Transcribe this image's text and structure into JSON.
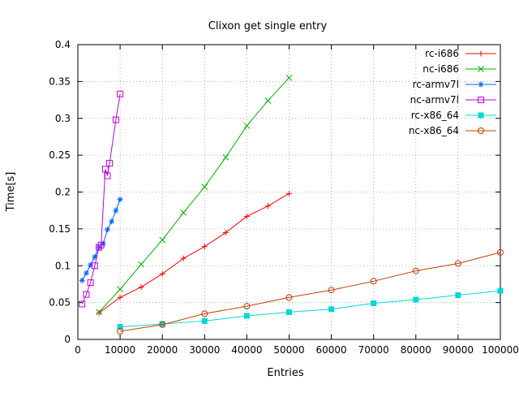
{
  "chart_data": {
    "type": "line",
    "title": "Clixon get single entry",
    "xlabel": "Entries",
    "ylabel": "Time[s]",
    "xlim": [
      0,
      100000
    ],
    "ylim": [
      0,
      0.4
    ],
    "xticks": [
      0,
      10000,
      20000,
      30000,
      40000,
      50000,
      60000,
      70000,
      80000,
      90000,
      100000
    ],
    "xtick_labels": [
      "0",
      "10000",
      "20000",
      "30000",
      "40000",
      "50000",
      "60000",
      "70000",
      "80000",
      "90000",
      "100000"
    ],
    "yticks": [
      0,
      0.05,
      0.1,
      0.15,
      0.2,
      0.25,
      0.3,
      0.35,
      0.4
    ],
    "ytick_labels": [
      "0",
      "0.05",
      "0.1",
      "0.15",
      "0.2",
      "0.25",
      "0.3",
      "0.35",
      "0.4"
    ],
    "grid": true,
    "legend_position": "top-right-inside",
    "series": [
      {
        "name": "rc-i686",
        "color": "#ff0000",
        "marker": "plus",
        "x": [
          5000,
          10000,
          15000,
          20000,
          25000,
          30000,
          35000,
          40000,
          45000,
          50000
        ],
        "y": [
          0.036,
          0.057,
          0.071,
          0.089,
          0.11,
          0.126,
          0.145,
          0.167,
          0.181,
          0.198
        ]
      },
      {
        "name": "nc-i686",
        "color": "#00b000",
        "marker": "cross",
        "x": [
          5000,
          10000,
          15000,
          20000,
          25000,
          30000,
          35000,
          40000,
          45000,
          50000
        ],
        "y": [
          0.037,
          0.068,
          0.102,
          0.135,
          0.172,
          0.207,
          0.247,
          0.29,
          0.324,
          0.355
        ]
      },
      {
        "name": "rc-armv7l",
        "color": "#0060ff",
        "marker": "asterisk",
        "x": [
          1000,
          2000,
          3000,
          4000,
          5000,
          6000,
          7000,
          8000,
          9000,
          10000
        ],
        "y": [
          0.08,
          0.09,
          0.101,
          0.112,
          0.125,
          0.13,
          0.149,
          0.16,
          0.175,
          0.19
        ]
      },
      {
        "name": "nc-armv7l",
        "color": "#c000e0",
        "marker": "square-open",
        "x": [
          1000,
          2000,
          3000,
          4000,
          5000,
          5500,
          6500,
          7000,
          7500,
          9000,
          10000
        ],
        "y": [
          0.048,
          0.061,
          0.077,
          0.1,
          0.125,
          0.128,
          0.231,
          0.222,
          0.239,
          0.298,
          0.333
        ]
      },
      {
        "name": "rc-x86_64",
        "color": "#00d8d8",
        "marker": "square-filled",
        "x": [
          10000,
          20000,
          30000,
          40000,
          50000,
          60000,
          70000,
          80000,
          90000,
          100000
        ],
        "y": [
          0.017,
          0.021,
          0.025,
          0.032,
          0.037,
          0.041,
          0.049,
          0.054,
          0.06,
          0.066
        ]
      },
      {
        "name": "nc-x86_64",
        "color": "#c04000",
        "marker": "circle-open",
        "x": [
          10000,
          20000,
          30000,
          40000,
          50000,
          60000,
          70000,
          80000,
          90000,
          100000
        ],
        "y": [
          0.011,
          0.02,
          0.035,
          0.045,
          0.057,
          0.067,
          0.079,
          0.093,
          0.103,
          0.118
        ]
      }
    ]
  }
}
